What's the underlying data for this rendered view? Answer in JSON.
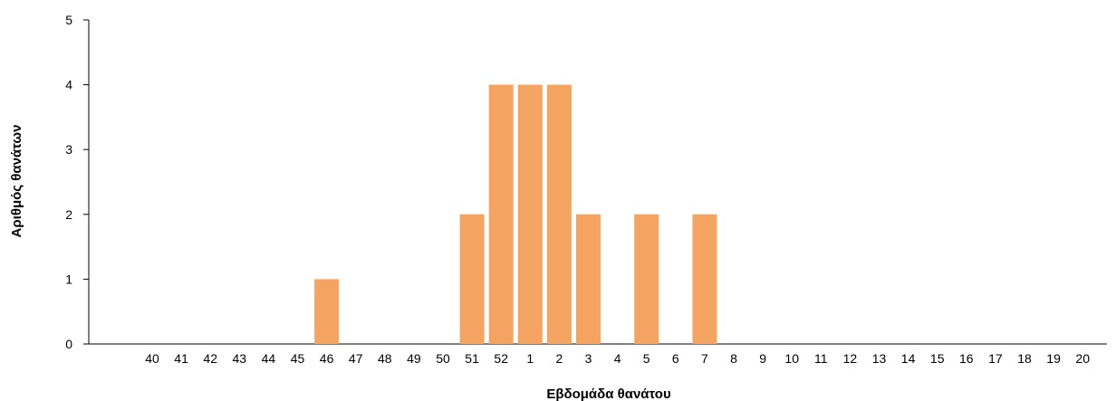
{
  "chart_data": {
    "type": "bar",
    "title": "",
    "xlabel": "Εβδομάδα θανάτου",
    "ylabel": "Αριθμός θανάτων",
    "ylim": [
      0,
      5
    ],
    "yticks": [
      0,
      1,
      2,
      3,
      4,
      5
    ],
    "grid": false,
    "legend": "none",
    "categories": [
      "40",
      "41",
      "42",
      "43",
      "44",
      "45",
      "46",
      "47",
      "48",
      "49",
      "50",
      "51",
      "52",
      "1",
      "2",
      "3",
      "4",
      "5",
      "6",
      "7",
      "8",
      "9",
      "10",
      "11",
      "12",
      "13",
      "14",
      "15",
      "16",
      "17",
      "18",
      "19",
      "20"
    ],
    "values": [
      0,
      0,
      0,
      0,
      0,
      0,
      1,
      0,
      0,
      0,
      0,
      2,
      4,
      4,
      4,
      2,
      0,
      2,
      0,
      2,
      0,
      0,
      0,
      0,
      0,
      0,
      0,
      0,
      0,
      0,
      0,
      0,
      0
    ],
    "bar_color": "#F4A460"
  }
}
